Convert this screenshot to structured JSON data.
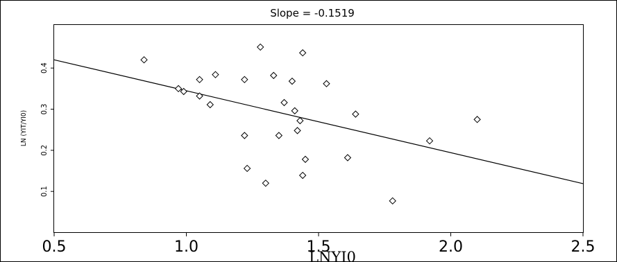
{
  "chart_data": {
    "type": "scatter",
    "title": "Slope = -0.1519",
    "xlabel": "LNYI0",
    "ylabel": "LN (YIT/YI0)",
    "xlim": [
      0.5,
      2.5
    ],
    "ylim": [
      0.0,
      0.5
    ],
    "xticks": [
      "0.5",
      "1.0",
      "1.5",
      "2.0",
      "2.5"
    ],
    "yticks": [
      "0.1",
      "0.2",
      "0.3",
      "0.4"
    ],
    "points": [
      {
        "x": 0.84,
        "y": 0.42
      },
      {
        "x": 0.97,
        "y": 0.35
      },
      {
        "x": 0.99,
        "y": 0.343
      },
      {
        "x": 1.05,
        "y": 0.372
      },
      {
        "x": 1.05,
        "y": 0.332
      },
      {
        "x": 1.09,
        "y": 0.311
      },
      {
        "x": 1.11,
        "y": 0.384
      },
      {
        "x": 1.22,
        "y": 0.372
      },
      {
        "x": 1.22,
        "y": 0.236
      },
      {
        "x": 1.23,
        "y": 0.156
      },
      {
        "x": 1.28,
        "y": 0.451
      },
      {
        "x": 1.3,
        "y": 0.12
      },
      {
        "x": 1.33,
        "y": 0.382
      },
      {
        "x": 1.35,
        "y": 0.236
      },
      {
        "x": 1.37,
        "y": 0.316
      },
      {
        "x": 1.4,
        "y": 0.368
      },
      {
        "x": 1.41,
        "y": 0.296
      },
      {
        "x": 1.42,
        "y": 0.248
      },
      {
        "x": 1.43,
        "y": 0.272
      },
      {
        "x": 1.44,
        "y": 0.437
      },
      {
        "x": 1.44,
        "y": 0.139
      },
      {
        "x": 1.45,
        "y": 0.178
      },
      {
        "x": 1.53,
        "y": 0.362
      },
      {
        "x": 1.61,
        "y": 0.182
      },
      {
        "x": 1.64,
        "y": 0.288
      },
      {
        "x": 1.78,
        "y": 0.077
      },
      {
        "x": 1.92,
        "y": 0.223
      },
      {
        "x": 2.1,
        "y": 0.275
      }
    ],
    "fit_line": {
      "x": [
        0.5,
        2.5
      ],
      "y": [
        0.42,
        0.119
      ]
    },
    "grid": false,
    "legend": "none"
  }
}
